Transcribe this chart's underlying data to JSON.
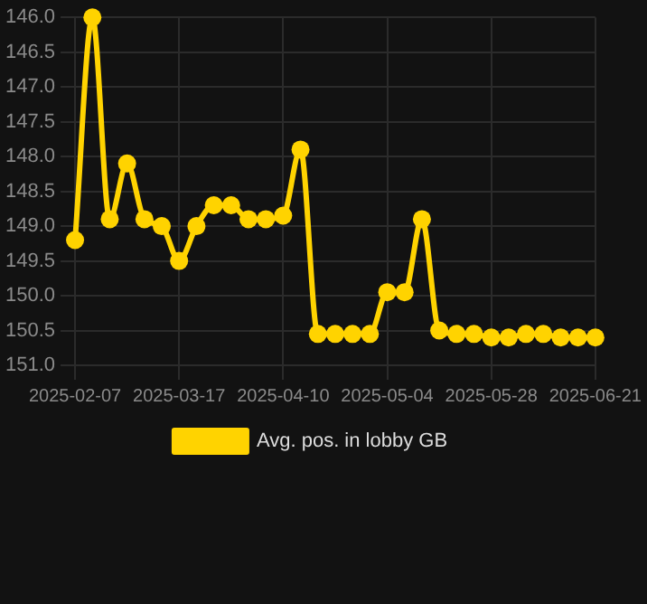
{
  "chart_data": {
    "type": "line",
    "categories": [
      "2025-02-07",
      null,
      null,
      null,
      null,
      null,
      "2025-03-17",
      null,
      null,
      null,
      null,
      null,
      "2025-04-10",
      null,
      null,
      null,
      null,
      null,
      "2025-05-04",
      null,
      null,
      null,
      null,
      null,
      "2025-05-28",
      null,
      null,
      null,
      null,
      null,
      "2025-06-21"
    ],
    "series": [
      {
        "name": "Avg. pos. in lobby GB",
        "color": "#ffd300",
        "values": [
          149.2,
          146.0,
          148.9,
          148.1,
          148.9,
          149.0,
          149.5,
          149.0,
          148.7,
          148.7,
          148.9,
          148.9,
          148.85,
          147.9,
          150.55,
          150.55,
          150.55,
          150.55,
          149.95,
          149.95,
          148.9,
          150.5,
          150.55,
          150.55,
          150.6,
          150.6,
          150.55,
          150.55,
          150.6,
          150.6,
          150.6
        ]
      }
    ],
    "ylim": [
      151.0,
      146.0
    ],
    "yticks": [
      {
        "value": 146,
        "label": "146.0"
      },
      {
        "value": 146.5,
        "label": "146.5"
      },
      {
        "value": 147,
        "label": "147.0"
      },
      {
        "value": 147.5,
        "label": "147.5"
      },
      {
        "value": 148,
        "label": "148.0"
      },
      {
        "value": 148.5,
        "label": "148.5"
      },
      {
        "value": 149,
        "label": "149.0"
      },
      {
        "value": 149.5,
        "label": "149.5"
      },
      {
        "value": 150,
        "label": "150.0"
      },
      {
        "value": 150.5,
        "label": "150.5"
      },
      {
        "value": 151,
        "label": "151.0"
      }
    ],
    "grid": true,
    "legend": "bottom",
    "marker": "circle",
    "line_style": "solid"
  }
}
